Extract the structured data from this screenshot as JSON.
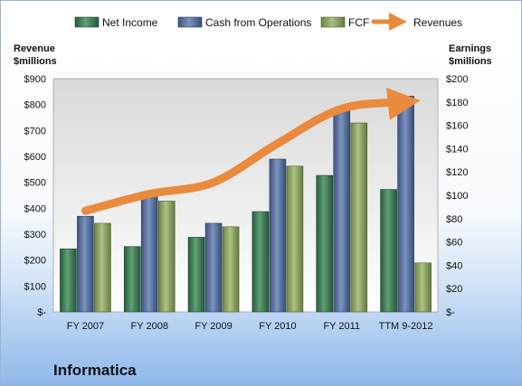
{
  "chart_data": {
    "type": "bar",
    "company": "Informatica",
    "categories": [
      "FY 2007",
      "FY 2008",
      "FY 2009",
      "FY 2010",
      "FY 2011",
      "TTM 9-2012"
    ],
    "y_left": {
      "label_line1": "Revenue",
      "label_line2": "$millions",
      "range": [
        0,
        900
      ],
      "ticks": [
        "$-",
        "$100",
        "$200",
        "$300",
        "$400",
        "$500",
        "$600",
        "$700",
        "$800",
        "$900"
      ]
    },
    "y_right": {
      "label_line1": "Earnings",
      "label_line2": "$millions",
      "range": [
        0,
        200
      ],
      "ticks": [
        "$-",
        "$20",
        "$40",
        "$60",
        "$80",
        "$100",
        "$120",
        "$140",
        "$160",
        "$180",
        "$200"
      ]
    },
    "series": [
      {
        "name": "Net Income",
        "type": "bar",
        "axis": "right",
        "color": "#2e7d4a",
        "values": [
          54,
          56,
          64,
          86,
          117,
          105
        ]
      },
      {
        "name": "Cash from Operations",
        "type": "bar",
        "axis": "right",
        "color": "#4f6fa8",
        "values": [
          82,
          101,
          76,
          131,
          174,
          185
        ]
      },
      {
        "name": "FCF",
        "type": "bar",
        "axis": "right",
        "color": "#8fae5a",
        "values": [
          76,
          95,
          73,
          125,
          162,
          42
        ]
      },
      {
        "name": "Revenues",
        "type": "line",
        "axis": "left",
        "color": "#e98a3c",
        "values": [
          390,
          455,
          500,
          650,
          784,
          810
        ]
      }
    ],
    "grid": false,
    "legend": "top"
  }
}
